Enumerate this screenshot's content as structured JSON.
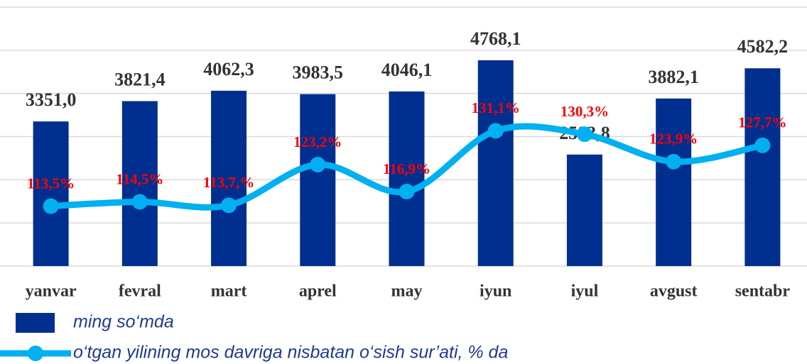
{
  "chart_data": {
    "type": "bar-line",
    "categories": [
      "yanvar",
      "fevral",
      "mart",
      "aprel",
      "may",
      "iyun",
      "iyul",
      "avgust",
      "sentabr"
    ],
    "series": [
      {
        "name": "ming so‘mda",
        "type": "bar",
        "color": "#002f8f",
        "values": [
          3351.0,
          3821.4,
          4062.3,
          3983.5,
          4046.1,
          4768.1,
          2583.8,
          3882.1,
          4582.2
        ],
        "value_labels": [
          "3351,0",
          "3821,4",
          "4062,3",
          "3983,5",
          "4046,1",
          "4768,1",
          "2583,8",
          "3882,1",
          "4582,2"
        ]
      },
      {
        "name": "o‘tgan yilining mos davriga nisbatan o‘sish sur’ati, % da",
        "type": "line",
        "axis": "y2",
        "color": "#00b0f0",
        "values": [
          113.5,
          114.5,
          113.7,
          123.2,
          116.9,
          131.1,
          130.3,
          123.9,
          127.7
        ],
        "value_labels": [
          "113,5%",
          "114,5%",
          "113,7,%",
          "123,2%",
          "116,9%",
          "131,1%",
          "130,3%",
          "123,9%",
          "127,7%"
        ]
      }
    ],
    "ylim": [
      0,
      6000
    ],
    "yticks": [
      0,
      1000,
      2000,
      3000,
      4000,
      5000,
      6000
    ],
    "y2lim": [
      99.5,
      160
    ],
    "grid": true,
    "legend": "bottom-left"
  }
}
